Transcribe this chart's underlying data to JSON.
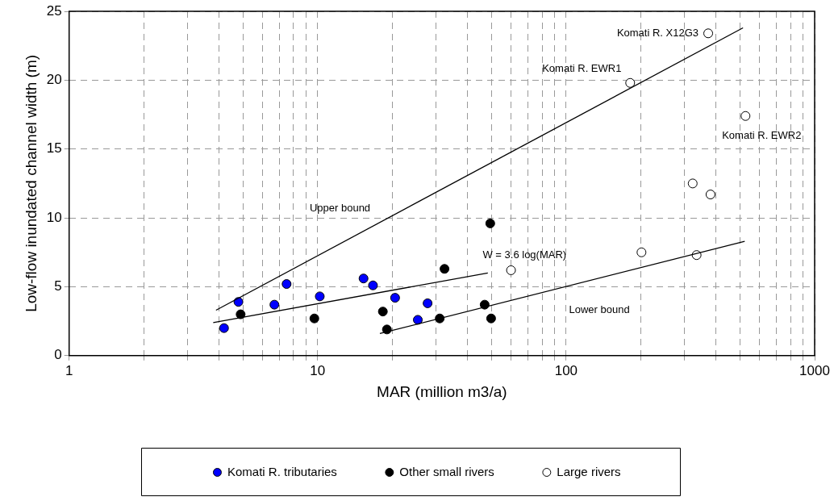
{
  "chart_data": {
    "type": "scatter",
    "xlabel": "MAR (million m3/a)",
    "ylabel": "Low-flow inundated channel width (m)",
    "log": "x",
    "xlim": [
      1,
      1000
    ],
    "ylim": [
      0,
      25
    ],
    "xticks": [
      1,
      {
        "value": 2,
        "label": null
      },
      {
        "value": 3,
        "label": null
      },
      {
        "value": 4,
        "label": null
      },
      {
        "value": 5,
        "label": null
      },
      {
        "value": 6,
        "label": null
      },
      {
        "value": 7,
        "label": null
      },
      {
        "value": 8,
        "label": null
      },
      {
        "value": 9,
        "label": null
      },
      10,
      {
        "value": 20,
        "label": null
      },
      {
        "value": 30,
        "label": null
      },
      {
        "value": 40,
        "label": null
      },
      {
        "value": 50,
        "label": null
      },
      {
        "value": 60,
        "label": null
      },
      {
        "value": 70,
        "label": null
      },
      {
        "value": 80,
        "label": null
      },
      {
        "value": 90,
        "label": null
      },
      100,
      {
        "value": 200,
        "label": null
      },
      {
        "value": 300,
        "label": null
      },
      {
        "value": 400,
        "label": null
      },
      {
        "value": 500,
        "label": null
      },
      {
        "value": 600,
        "label": null
      },
      {
        "value": 700,
        "label": null
      },
      {
        "value": 800,
        "label": null
      },
      {
        "value": 900,
        "label": null
      },
      1000
    ],
    "yticks": [
      0,
      5,
      10,
      15,
      20,
      25
    ],
    "grid": true,
    "legend": "bottom",
    "marker": "circle",
    "series": [
      {
        "name": "Komati R. tributaries",
        "color": "#0000ff",
        "x": [
          4.2,
          4.8,
          6.7,
          7.5,
          10.2,
          15.3,
          16.7,
          20.5,
          25.3,
          27.7
        ],
        "values": [
          2.0,
          3.9,
          3.7,
          5.2,
          4.3,
          5.6,
          5.1,
          4.2,
          2.6,
          3.8
        ]
      },
      {
        "name": "Other small rivers",
        "color": "#000000",
        "x": [
          4.9,
          9.7,
          18.3,
          19.0,
          31,
          32.4,
          47,
          49.5,
          49.9
        ],
        "values": [
          3.0,
          2.7,
          3.2,
          1.9,
          2.7,
          6.3,
          3.7,
          9.6,
          2.7
        ]
      },
      {
        "name": "Large rivers",
        "color": "#ffffff",
        "x": [
          60,
          181,
          201,
          323,
          335,
          373,
          381,
          527
        ],
        "values": [
          6.2,
          19.8,
          7.5,
          12.5,
          7.3,
          23.4,
          11.7,
          17.4
        ]
      },
      {
        "type": "line",
        "marker": "none",
        "color": "#000000",
        "x": [
          3.9,
          515
        ],
        "values": [
          3.3,
          23.8
        ]
      },
      {
        "type": "line",
        "marker": "none",
        "color": "#000000",
        "x": [
          3.8,
          48.4
        ],
        "values": [
          2.4,
          6.0
        ]
      },
      {
        "type": "line",
        "marker": "none",
        "color": "#000000",
        "x": [
          17.8,
          523
        ],
        "values": [
          1.6,
          8.3
        ]
      }
    ],
    "annotations": [
      {
        "text": "Komati R. X12G3",
        "x": 373,
        "y": 23.4
      },
      {
        "text": "Komati R. EWR1",
        "x": 181,
        "y": 19.8
      },
      {
        "text": "Komati R. EWR2",
        "x": 527,
        "y": 17.4
      },
      "Upper bound",
      "W = 3.6 log(MAR)",
      "Lower bound"
    ]
  }
}
